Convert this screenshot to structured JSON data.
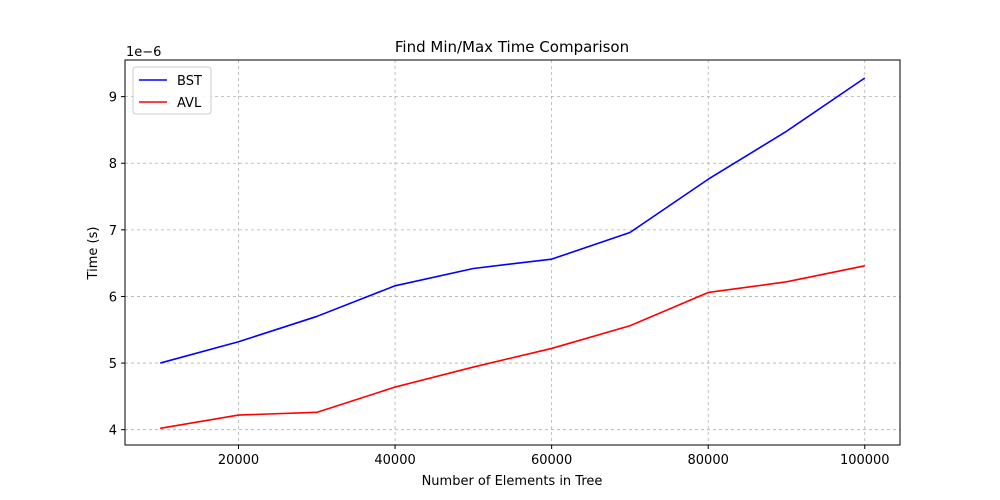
{
  "chart_data": {
    "type": "line",
    "title": "Find Min/Max Time Comparison",
    "xlabel": "Number of Elements in Tree",
    "ylabel": "Time (s)",
    "y_offset_label": "1e−6",
    "xlim": [
      5500,
      104500
    ],
    "ylim": [
      3.77,
      9.55
    ],
    "x_ticks": [
      20000,
      40000,
      60000,
      80000,
      100000
    ],
    "y_ticks": [
      4,
      5,
      6,
      7,
      8,
      9
    ],
    "grid": true,
    "legend_position": "top-left",
    "x": [
      10000,
      20000,
      30000,
      40000,
      50000,
      60000,
      70000,
      80000,
      90000,
      100000
    ],
    "series": [
      {
        "name": "BST",
        "color": "#0000ff",
        "values": [
          5.0,
          5.32,
          5.7,
          6.16,
          6.42,
          6.56,
          6.96,
          7.76,
          8.48,
          9.28
        ]
      },
      {
        "name": "AVL",
        "color": "#ff0000",
        "values": [
          4.02,
          4.22,
          4.26,
          4.64,
          4.94,
          5.22,
          5.56,
          6.06,
          6.22,
          6.46
        ]
      }
    ]
  }
}
